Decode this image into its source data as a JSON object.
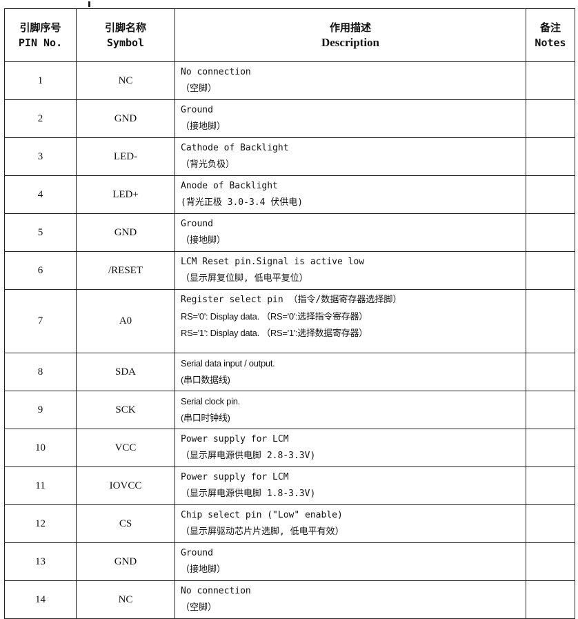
{
  "header": {
    "pin_cn": "引脚序号",
    "pin_en": "PIN No.",
    "symbol_cn": "引脚名称",
    "symbol_en": "Symbol",
    "desc_cn": "作用描述",
    "desc_en": "Description",
    "notes_cn": "备注",
    "notes_en": "Notes"
  },
  "rows": [
    {
      "pin": "1",
      "symbol": "NC",
      "lines": [
        {
          "t": "No connection",
          "f": "mono"
        },
        {
          "t": " （空脚）",
          "f": "mono"
        }
      ]
    },
    {
      "pin": "2",
      "symbol": "GND",
      "lines": [
        {
          "t": "Ground",
          "f": "mono"
        },
        {
          "t": " （接地脚）",
          "f": "mono"
        }
      ]
    },
    {
      "pin": "3",
      "symbol": "LED-",
      "lines": [
        {
          "t": "Cathode of Backlight",
          "f": "mono"
        },
        {
          "t": " （背光负极）",
          "f": "mono"
        }
      ]
    },
    {
      "pin": "4",
      "symbol": "LED+",
      "lines": [
        {
          "t": "Anode of Backlight",
          "f": "mono"
        },
        {
          "t": "(背光正极 3.0-3.4 伏供电)",
          "f": "mono"
        }
      ]
    },
    {
      "pin": "5",
      "symbol": "GND",
      "lines": [
        {
          "t": "Ground",
          "f": "mono"
        },
        {
          "t": " （接地脚）",
          "f": "mono"
        }
      ]
    },
    {
      "pin": "6",
      "symbol": "/RESET",
      "lines": [
        {
          "t": "LCM Reset pin.Signal is active low",
          "f": "mono"
        },
        {
          "t": " （显示屏复位脚, 低电平复位）",
          "f": "mono"
        }
      ]
    },
    {
      "pin": "7",
      "symbol": "A0",
      "tall": true,
      "lines": [
        {
          "t": "Register select pin （指令/数据寄存器选择脚）",
          "f": "mono"
        },
        {
          "t": "RS='0': Display data. （RS='0':选择指令寄存器）",
          "f": "sans"
        },
        {
          "t": "RS='1': Display data. （RS='1':选择数据寄存器）",
          "f": "sans"
        }
      ]
    },
    {
      "pin": "8",
      "symbol": "SDA",
      "lines": [
        {
          "t": "Serial data input / output.",
          "f": "sans"
        },
        {
          "t": "(串口数据线)",
          "f": "sans"
        }
      ]
    },
    {
      "pin": "9",
      "symbol": "SCK",
      "lines": [
        {
          "t": "Serial clock pin.",
          "f": "sans"
        },
        {
          "t": "(串口时钟线)",
          "f": "sans"
        }
      ]
    },
    {
      "pin": "10",
      "symbol": "VCC",
      "lines": [
        {
          "t": "Power supply for LCM",
          "f": "mono"
        },
        {
          "t": " （显示屏电源供电脚 2.8-3.3V)",
          "f": "mono"
        }
      ]
    },
    {
      "pin": "11",
      "symbol": "IOVCC",
      "lines": [
        {
          "t": "Power supply for LCM",
          "f": "mono"
        },
        {
          "t": " （显示屏电源供电脚 1.8-3.3V)",
          "f": "mono"
        }
      ]
    },
    {
      "pin": "12",
      "symbol": "CS",
      "lines": [
        {
          "t": "Chip select pin (\"Low\" enable)",
          "f": "mono"
        },
        {
          "t": " （显示屏驱动芯片片选脚, 低电平有效）",
          "f": "mono"
        }
      ]
    },
    {
      "pin": "13",
      "symbol": "GND",
      "lines": [
        {
          "t": "Ground",
          "f": "mono"
        },
        {
          "t": " （接地脚）",
          "f": "mono"
        }
      ]
    },
    {
      "pin": "14",
      "symbol": "NC",
      "lines": [
        {
          "t": "No connection",
          "f": "mono"
        },
        {
          "t": " （空脚）",
          "f": "mono"
        }
      ]
    }
  ]
}
